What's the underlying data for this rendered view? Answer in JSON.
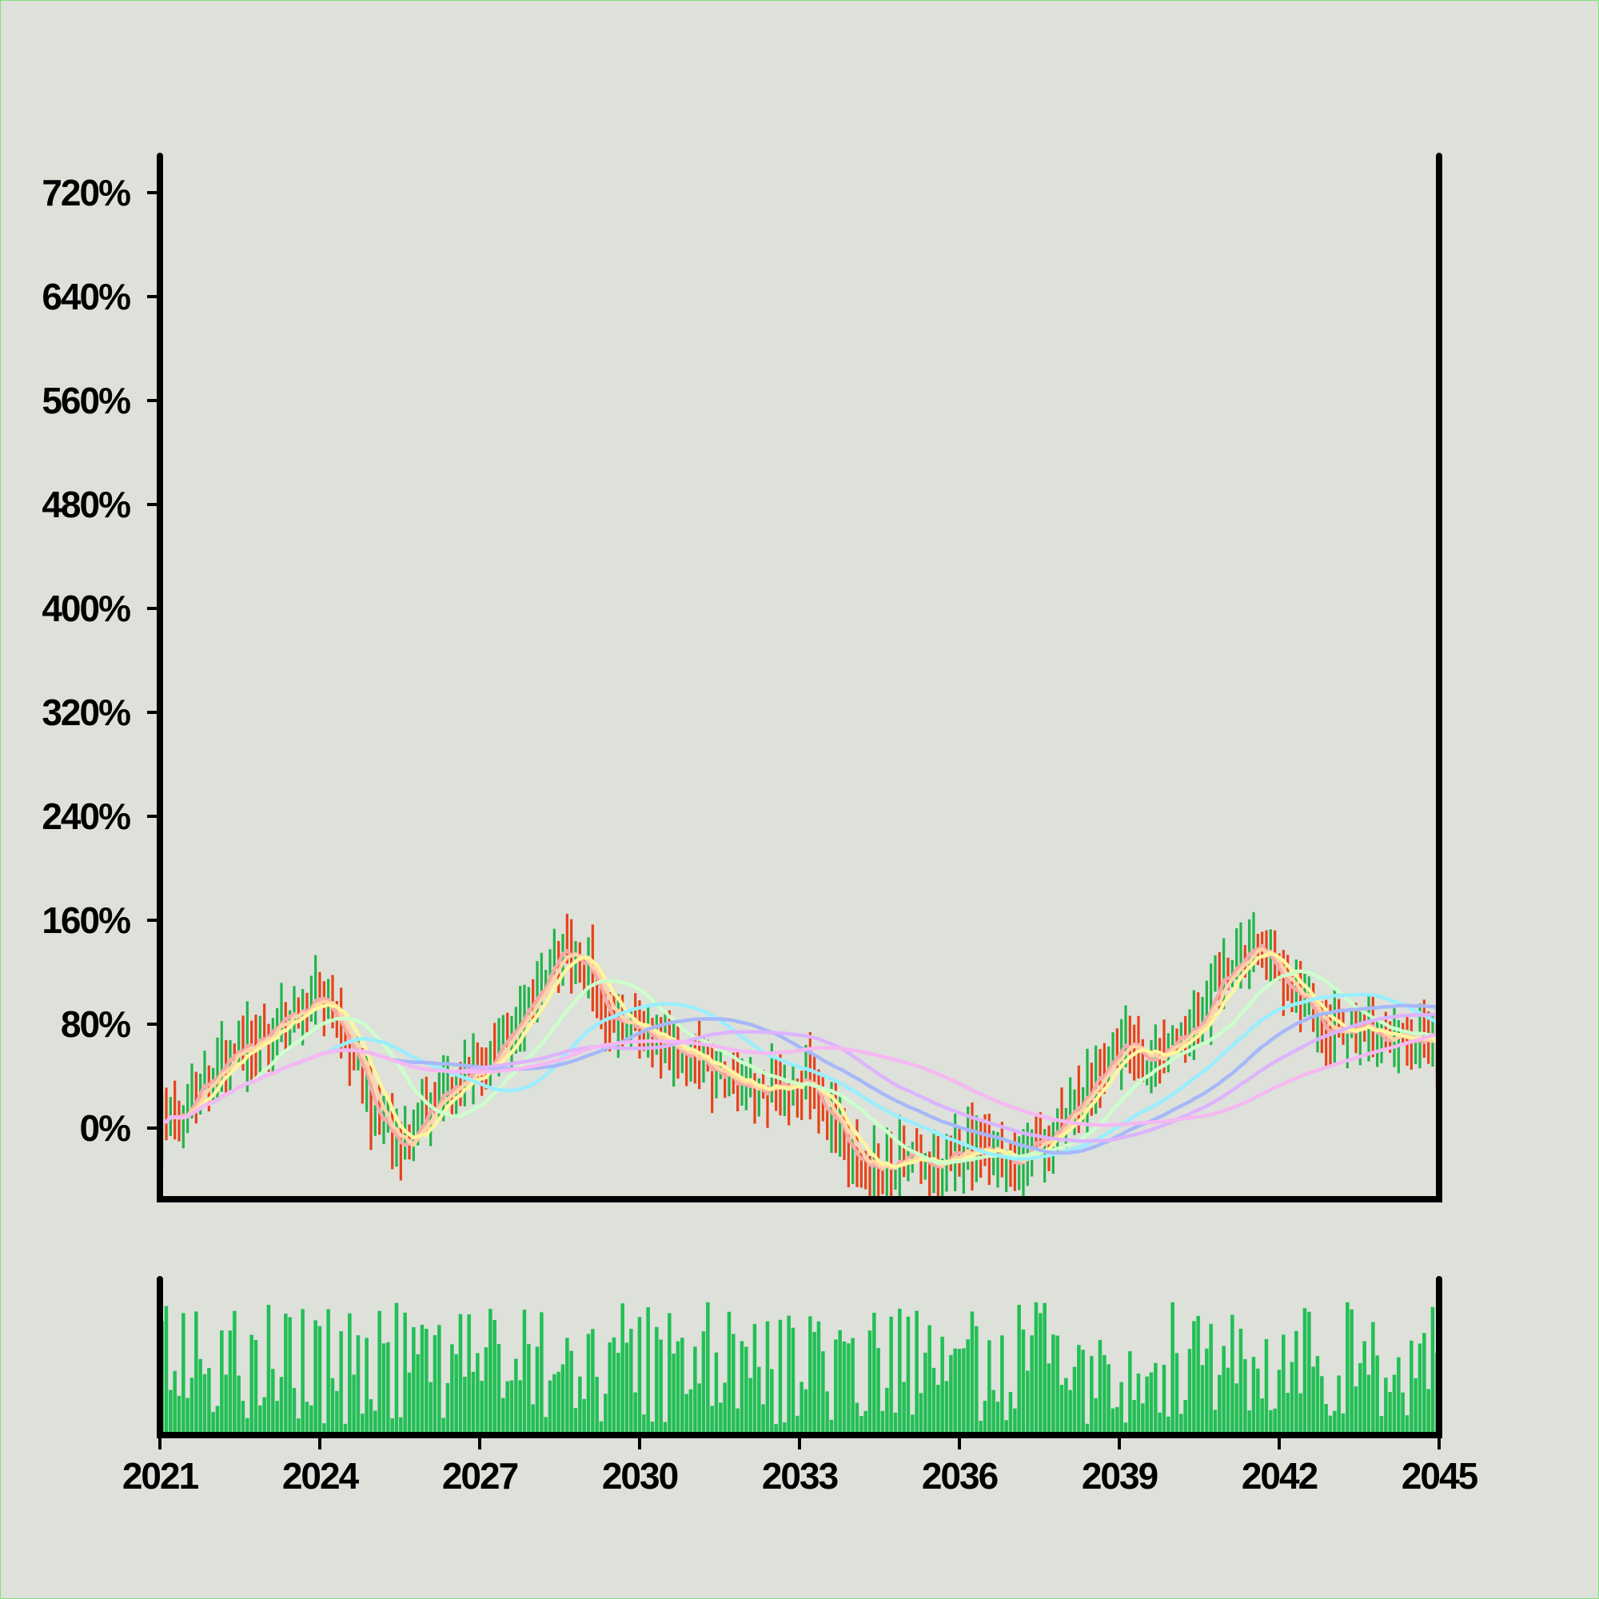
{
  "chart_data": {
    "type": "ohlc",
    "x_tick_labels": [
      "2021",
      "2024",
      "2027",
      "2030",
      "2033",
      "2036",
      "2039",
      "2042",
      "2045"
    ],
    "x_ticks": [
      2021,
      2024,
      2027,
      2030,
      2033,
      2036,
      2039,
      2042,
      2045
    ],
    "y_tick_labels": [
      "0%",
      "80%",
      "160%",
      "240%",
      "320%",
      "400%",
      "480%",
      "560%",
      "640%",
      "720%"
    ],
    "y_ticks": [
      0,
      80,
      160,
      240,
      320,
      400,
      480,
      560,
      640,
      720
    ],
    "xlim": [
      2021,
      2045
    ],
    "ylim": [
      -52,
      748
    ],
    "grid": false,
    "legend": "none",
    "volume_panel": true,
    "price_anchors": [
      [
        2021.0,
        0
      ],
      [
        2021.5,
        18
      ],
      [
        2022.0,
        45
      ],
      [
        2022.5,
        60
      ],
      [
        2023.0,
        75
      ],
      [
        2023.5,
        88
      ],
      [
        2024.0,
        100
      ],
      [
        2024.5,
        65
      ],
      [
        2025.0,
        15
      ],
      [
        2025.5,
        -15
      ],
      [
        2026.0,
        12
      ],
      [
        2026.5,
        30
      ],
      [
        2027.0,
        45
      ],
      [
        2027.5,
        70
      ],
      [
        2028.0,
        105
      ],
      [
        2028.5,
        140
      ],
      [
        2029.0,
        118
      ],
      [
        2029.5,
        88
      ],
      [
        2030.0,
        78
      ],
      [
        2030.5,
        65
      ],
      [
        2031.0,
        52
      ],
      [
        2031.5,
        38
      ],
      [
        2032.0,
        28
      ],
      [
        2032.5,
        30
      ],
      [
        2033.0,
        40
      ],
      [
        2033.5,
        15
      ],
      [
        2034.0,
        -20
      ],
      [
        2034.5,
        -32
      ],
      [
        2035.0,
        -25
      ],
      [
        2035.5,
        -28
      ],
      [
        2036.0,
        -20
      ],
      [
        2036.5,
        -18
      ],
      [
        2037.0,
        -25
      ],
      [
        2037.5,
        -10
      ],
      [
        2038.0,
        5
      ],
      [
        2038.5,
        35
      ],
      [
        2039.0,
        62
      ],
      [
        2039.5,
        50
      ],
      [
        2040.0,
        62
      ],
      [
        2040.5,
        82
      ],
      [
        2041.0,
        120
      ],
      [
        2041.5,
        140
      ],
      [
        2042.0,
        115
      ],
      [
        2042.5,
        95
      ],
      [
        2043.0,
        75
      ],
      [
        2043.5,
        82
      ],
      [
        2044.0,
        70
      ],
      [
        2044.5,
        68
      ],
      [
        2045.0,
        65
      ]
    ],
    "moving_averages": [
      {
        "color": "#f4a9a9",
        "window": 4
      },
      {
        "color": "#ffd3a5",
        "window": 6
      },
      {
        "color": "#fff59d",
        "window": 9
      },
      {
        "color": "#ccffcc",
        "window": 22
      },
      {
        "color": "#99eeff",
        "window": 40
      },
      {
        "color": "#a7b8f8",
        "window": 55
      },
      {
        "color": "#ddb3ff",
        "window": 70
      },
      {
        "color": "#f5b8f2",
        "window": 95
      }
    ],
    "colors": {
      "up": "#22b34a",
      "down": "#e84118",
      "volume": "#22bf55",
      "axis": "#000000",
      "background": "#dde1da"
    }
  }
}
